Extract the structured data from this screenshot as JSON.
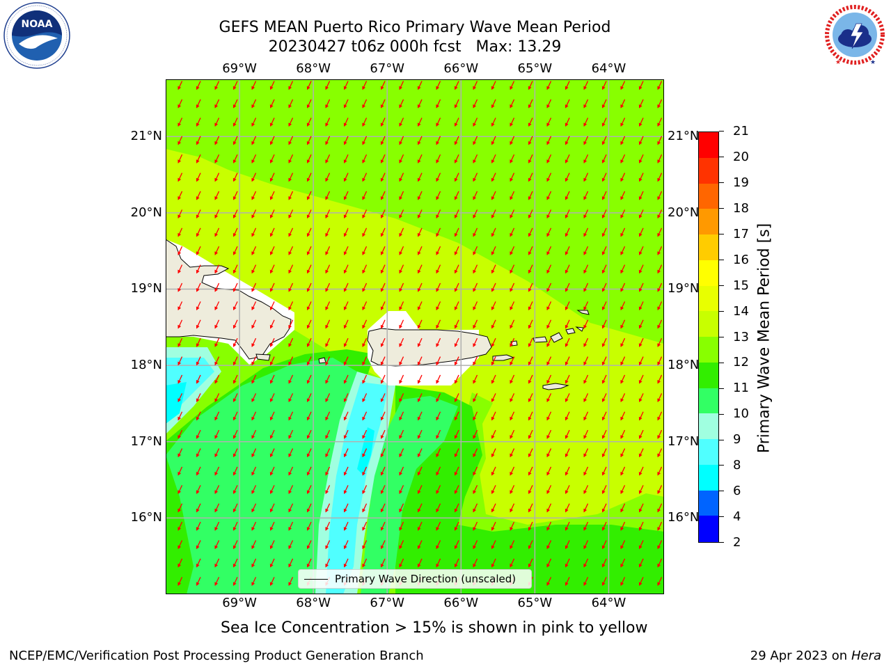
{
  "title": {
    "line1": "GEFS MEAN Puerto Rico Primary Wave Mean Period",
    "line2": "20230427 t06z 000h fcst   Max: 13.29"
  },
  "logos": {
    "left": {
      "name": "noaa-logo",
      "text": "NOAA",
      "ring_text": "NATIONAL OCEANIC AND ATMOSPHERIC ADMINISTRATION · U.S. DEPARTMENT OF COMMERCE"
    },
    "right": {
      "name": "nws-logo",
      "ring_text": "NATIONAL WEATHER SERVICE"
    }
  },
  "map": {
    "lon_labels": [
      "69°W",
      "68°W",
      "67°W",
      "66°W",
      "65°W",
      "64°W"
    ],
    "lat_labels": [
      "21°N",
      "20°N",
      "19°N",
      "18°N",
      "17°N",
      "16°N"
    ],
    "lon_values": [
      -69,
      -68,
      -67,
      -66,
      -65,
      -64
    ],
    "lat_values": [
      21,
      20,
      19,
      18,
      17,
      16
    ],
    "extent": {
      "lon_min": -70,
      "lon_max": -63.25,
      "lat_min": 15,
      "lat_max": 21.75
    },
    "arrow_direction": "toward south-southwest",
    "arrow_color": "#ff0000",
    "land_color": "#eeecdc",
    "legend": {
      "label": "Primary Wave Direction (unscaled)"
    }
  },
  "colorbar": {
    "label": "Primary Wave Mean Period [s]",
    "ticks": [
      "2",
      "4",
      "6",
      "8",
      "9",
      "10",
      "11",
      "12",
      "13",
      "14",
      "15",
      "16",
      "17",
      "18",
      "19",
      "20",
      "21"
    ],
    "colors": [
      "#0000ff",
      "#0064ff",
      "#00ffff",
      "#50ffff",
      "#a0ffe0",
      "#32ff64",
      "#32ee00",
      "#88ff00",
      "#c8ff00",
      "#e8ff00",
      "#ffff00",
      "#ffcc00",
      "#ff9900",
      "#ff6600",
      "#ff3300",
      "#ff0000"
    ]
  },
  "caption": "Sea Ice Concentration > 15% is shown in pink to yellow",
  "footer": {
    "left": "NCEP/EMC/Verification Post Processing Product Generation Branch",
    "right_date": "29 Apr 2023 on ",
    "right_machine": "Hera"
  }
}
